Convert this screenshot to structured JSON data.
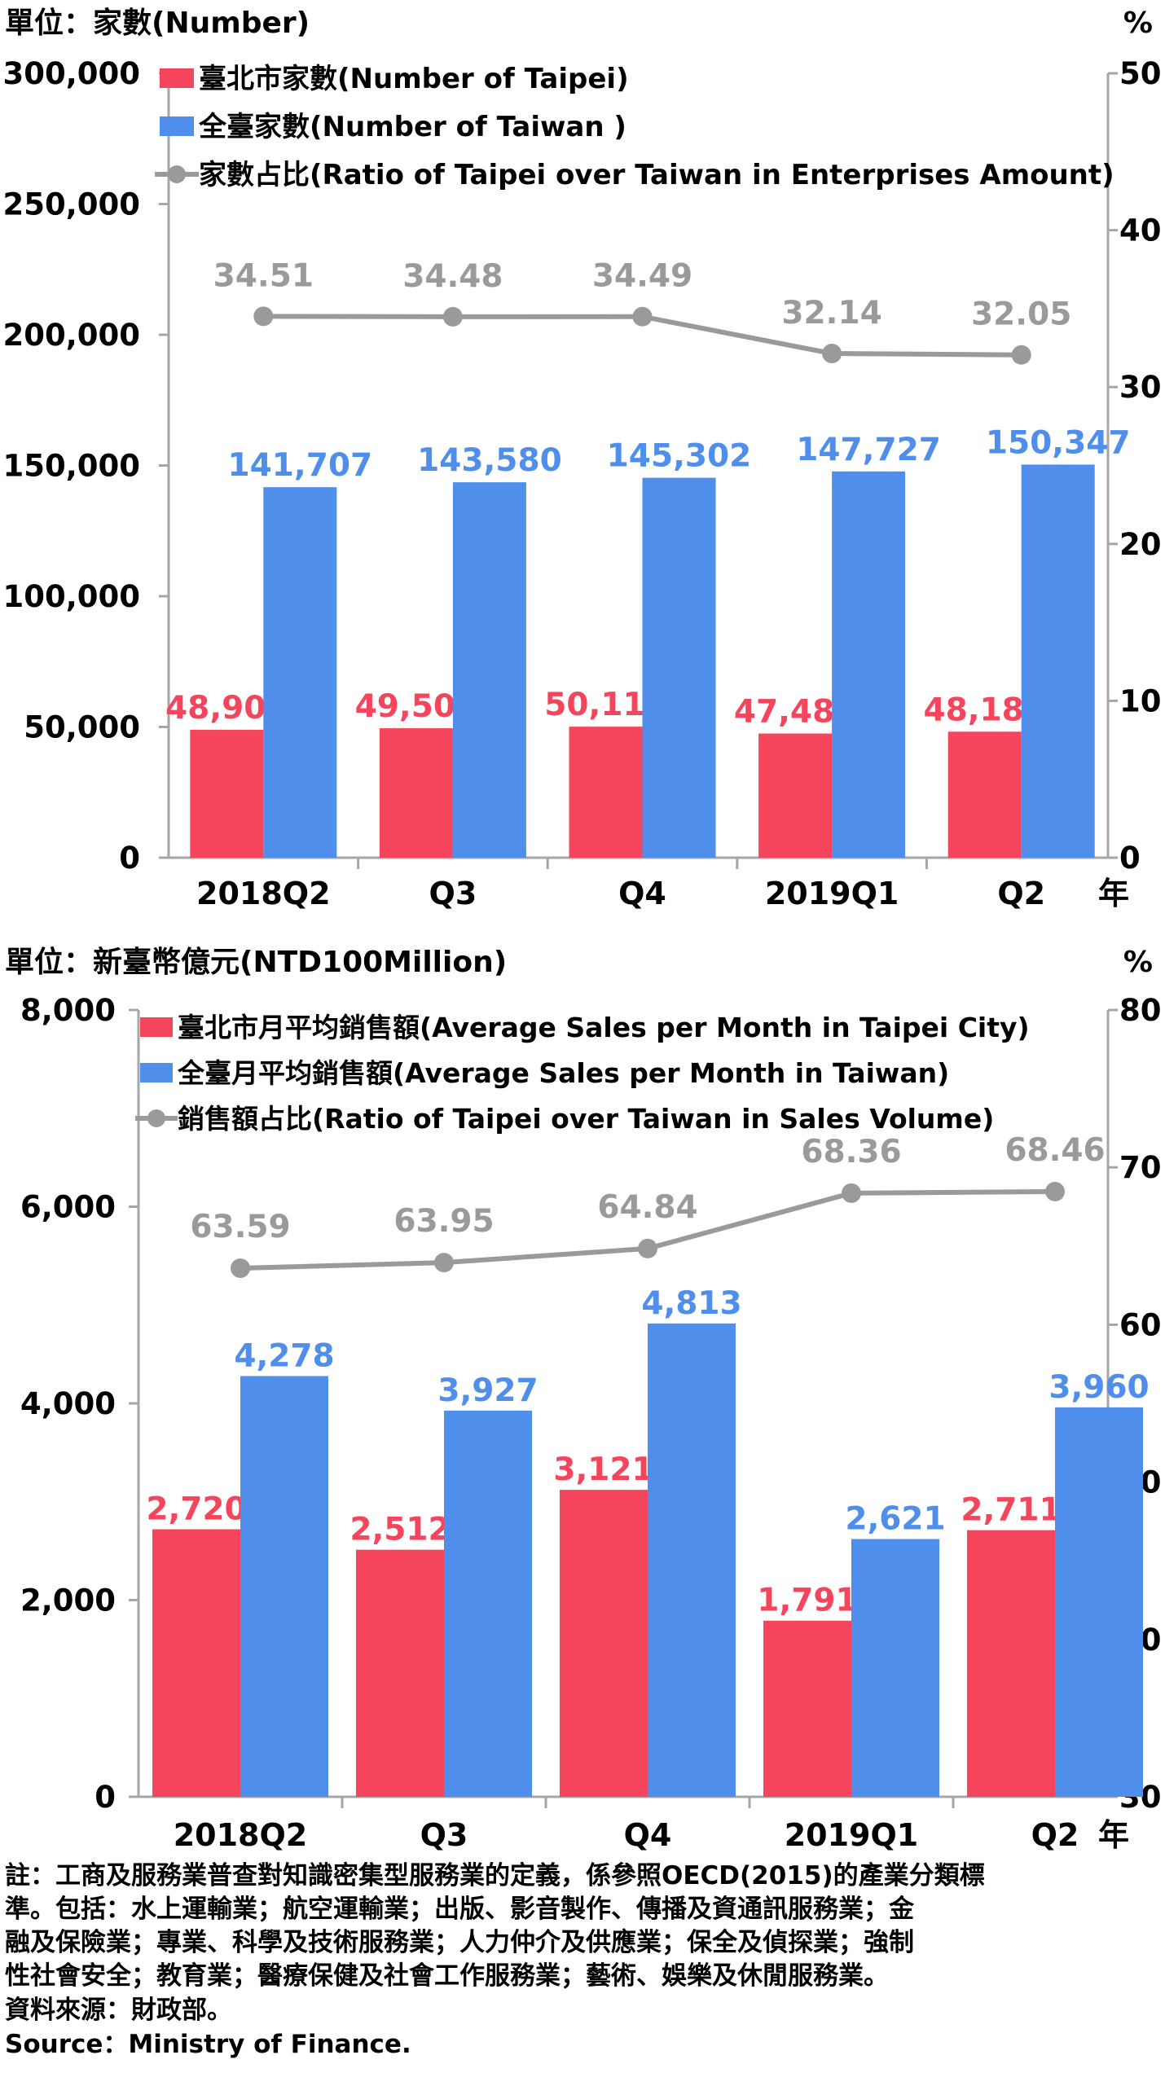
{
  "chart_data": [
    {
      "type": "bar",
      "unit_left": "單位：家數(Number)",
      "unit_right": "%",
      "year_label": "年",
      "categories": [
        "2018Q2",
        "Q3",
        "Q4",
        "2019Q1",
        "Q2"
      ],
      "y_left": {
        "min": 0,
        "max": 300000,
        "ticks": [
          "0",
          "50,000",
          "100,000",
          "150,000",
          "200,000",
          "250,000",
          "300,000"
        ]
      },
      "y_right": {
        "min": 0,
        "max": 50,
        "ticks": [
          "0",
          "10",
          "20",
          "30",
          "40",
          "50"
        ]
      },
      "series": [
        {
          "name": "臺北市家數(Number of  Taipei)",
          "kind": "bar",
          "axis": "left",
          "color": "#F5455C",
          "values": [
            48905,
            49506,
            50111,
            47485,
            48186
          ],
          "labels": [
            "48,905",
            "49,506",
            "50,111",
            "47,485",
            "48,186"
          ]
        },
        {
          "name": "全臺家數(Number of Taiwan )",
          "kind": "bar",
          "axis": "left",
          "color": "#4F8FEB",
          "values": [
            141707,
            143580,
            145302,
            147727,
            150347
          ],
          "labels": [
            "141,707",
            "143,580",
            "145,302",
            "147,727",
            "150,347"
          ]
        },
        {
          "name": "家數占比(Ratio of Taipei over Taiwan in Enterprises Amount)",
          "kind": "line",
          "axis": "right",
          "color": "#9A9A9A",
          "values": [
            34.51,
            34.48,
            34.49,
            32.14,
            32.05
          ],
          "labels": [
            "34.51",
            "34.48",
            "34.49",
            "32.14",
            "32.05"
          ]
        }
      ],
      "grid": false,
      "legend": "top-left"
    },
    {
      "type": "bar",
      "unit_left": "單位：新臺幣億元(NTD100Million)",
      "unit_right": "%",
      "year_label": "年",
      "categories": [
        "2018Q2",
        "Q3",
        "Q4",
        "2019Q1",
        "Q2"
      ],
      "y_left": {
        "min": 0,
        "max": 8000,
        "ticks": [
          "0",
          "2,000",
          "4,000",
          "6,000",
          "8,000"
        ]
      },
      "y_right": {
        "min": 30,
        "max": 80,
        "ticks": [
          "30",
          "40",
          "50",
          "60",
          "70",
          "80"
        ]
      },
      "series": [
        {
          "name": "臺北市月平均銷售額(Average Sales per Month in Taipei City)",
          "kind": "bar",
          "axis": "left",
          "color": "#F5455C",
          "values": [
            2720,
            2512,
            3121,
            1791,
            2711
          ],
          "labels": [
            "2,720",
            "2,512",
            "3,121",
            "1,791",
            "2,711"
          ]
        },
        {
          "name": "全臺月平均銷售額(Average Sales per Month in Taiwan)",
          "kind": "bar",
          "axis": "left",
          "color": "#4F8FEB",
          "values": [
            4278,
            3927,
            4813,
            2621,
            3960
          ],
          "labels": [
            "4,278",
            "3,927",
            "4,813",
            "2,621",
            "3,960"
          ]
        },
        {
          "name": "銷售額占比(Ratio of Taipei over Taiwan in Sales Volume)",
          "kind": "line",
          "axis": "right",
          "color": "#9A9A9A",
          "values": [
            63.59,
            63.95,
            64.84,
            68.36,
            68.46
          ],
          "labels": [
            "63.59",
            "63.95",
            "64.84",
            "68.36",
            "68.46"
          ]
        }
      ],
      "grid": false,
      "legend": "top-left"
    }
  ],
  "notes": [
    "註：工商及服務業普查對知識密集型服務業的定義，係參照OECD(2015)的產業分類標",
    "準。包括：水上運輸業；航空運輸業；出版、影音製作、傳播及資通訊服務業；金",
    "融及保險業；專業、科學及技術服務業；人力仲介及供應業；保全及偵探業；強制",
    "性社會安全；教育業；醫療保健及社會工作服務業；藝術、娛樂及休閒服務業。",
    "資料來源：財政部。",
    "Source：Ministry of Finance."
  ]
}
